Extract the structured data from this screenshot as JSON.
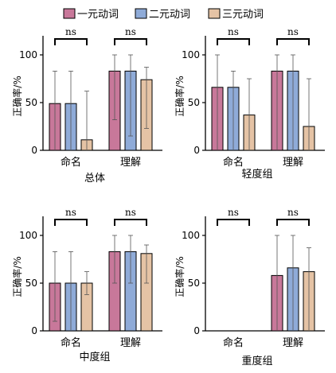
{
  "legend": [
    {
      "label": "一元动词",
      "color": "#c8789a"
    },
    {
      "label": "二元动词",
      "color": "#8fabd8"
    },
    {
      "label": "三元动词",
      "color": "#e5c3a5"
    }
  ],
  "chart_data": [
    {
      "type": "bar",
      "title": "总体",
      "ylabel": "正确率/%",
      "categories": [
        "命名",
        "理解"
      ],
      "ylim": [
        0,
        120
      ],
      "yticks": [
        0,
        50,
        100
      ],
      "significance": [
        "ns",
        "ns"
      ],
      "series": [
        {
          "name": "一元动词",
          "values": [
            49,
            83
          ],
          "err_low": [
            0,
            32
          ],
          "err_high": [
            83,
            100
          ]
        },
        {
          "name": "二元动词",
          "values": [
            49,
            83
          ],
          "err_low": [
            0,
            15
          ],
          "err_high": [
            83,
            100
          ]
        },
        {
          "name": "三元动词",
          "values": [
            11,
            74
          ],
          "err_low": [
            0,
            23
          ],
          "err_high": [
            62,
            87
          ]
        }
      ]
    },
    {
      "type": "bar",
      "title": "轻度组",
      "ylabel": "正确率/%",
      "categories": [
        "命名",
        "理解"
      ],
      "ylim": [
        0,
        120
      ],
      "yticks": [
        0,
        50,
        100
      ],
      "significance": [
        "ns",
        "ns"
      ],
      "series": [
        {
          "name": "一元动词",
          "values": [
            66,
            83
          ],
          "err_low": [
            0,
            0
          ],
          "err_high": [
            100,
            100
          ]
        },
        {
          "name": "二元动词",
          "values": [
            66,
            83
          ],
          "err_low": [
            0,
            0
          ],
          "err_high": [
            83,
            100
          ]
        },
        {
          "name": "三元动词",
          "values": [
            37,
            25
          ],
          "err_low": [
            0,
            0
          ],
          "err_high": [
            75,
            75
          ]
        }
      ]
    },
    {
      "type": "bar",
      "title": "中度组",
      "ylabel": "正确率/%",
      "categories": [
        "命名",
        "理解"
      ],
      "ylim": [
        0,
        120
      ],
      "yticks": [
        0,
        50,
        100
      ],
      "significance": [
        "ns",
        "ns"
      ],
      "series": [
        {
          "name": "一元动词",
          "values": [
            50,
            83
          ],
          "err_low": [
            10,
            50
          ],
          "err_high": [
            83,
            100
          ]
        },
        {
          "name": "二元动词",
          "values": [
            50,
            83
          ],
          "err_low": [
            0,
            50
          ],
          "err_high": [
            83,
            100
          ]
        },
        {
          "name": "三元动词",
          "values": [
            50,
            81
          ],
          "err_low": [
            38,
            50
          ],
          "err_high": [
            62,
            90
          ]
        }
      ]
    },
    {
      "type": "bar",
      "title": "重度组",
      "ylabel": "正确率/%",
      "categories": [
        "命名",
        "理解"
      ],
      "ylim": [
        0,
        120
      ],
      "yticks": [
        0,
        50,
        100
      ],
      "significance": [
        "ns",
        "ns"
      ],
      "series": [
        {
          "name": "一元动词",
          "values": [
            0,
            58
          ],
          "err_low": [
            0,
            0
          ],
          "err_high": [
            0,
            100
          ]
        },
        {
          "name": "二元动词",
          "values": [
            0,
            66
          ],
          "err_low": [
            0,
            0
          ],
          "err_high": [
            0,
            100
          ]
        },
        {
          "name": "三元动词",
          "values": [
            0,
            62
          ],
          "err_low": [
            0,
            0
          ],
          "err_high": [
            0,
            87
          ]
        }
      ]
    }
  ]
}
